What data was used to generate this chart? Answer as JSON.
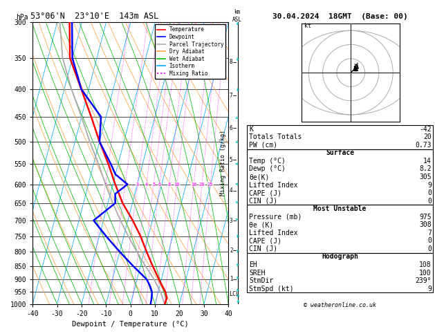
{
  "title_left": "53°06'N  23°10'E  143m ASL",
  "title_right": "30.04.2024  18GMT  (Base: 00)",
  "label_hpa": "hPa",
  "xlabel": "Dewpoint / Temperature (°C)",
  "ylabel_mixing": "Mixing Ratio (g/kg)",
  "pressure_ticks": [
    300,
    350,
    400,
    450,
    500,
    550,
    600,
    650,
    700,
    750,
    800,
    850,
    900,
    950,
    1000
  ],
  "xlim": [
    -40,
    40
  ],
  "background_color": "#ffffff",
  "temp_color": "#ff0000",
  "dewp_color": "#0000ff",
  "parcel_color": "#aaaaaa",
  "dry_adiabat_color": "#ffa040",
  "wet_adiabat_color": "#00bb00",
  "isotherm_color": "#00aaff",
  "mixing_ratio_color": "#ff00ff",
  "lcl_label": "LCL",
  "mixing_ratio_values": [
    1,
    2,
    3,
    4,
    5,
    6,
    8,
    10,
    16,
    20,
    25
  ],
  "km_ticks": [
    1,
    2,
    3,
    4,
    5,
    6,
    7,
    8
  ],
  "legend_entries": [
    "Temperature",
    "Dewpoint",
    "Parcel Trajectory",
    "Dry Adiabat",
    "Wet Adiabat",
    "Isotherm",
    "Mixing Ratio"
  ],
  "legend_colors": [
    "#ff0000",
    "#0000ff",
    "#aaaaaa",
    "#ffa040",
    "#00bb00",
    "#00aaff",
    "#ff00ff"
  ],
  "stats_lines": [
    [
      "K",
      "-42"
    ],
    [
      "Totals Totals",
      "20"
    ],
    [
      "PW (cm)",
      "0.73"
    ]
  ],
  "surface_lines": [
    [
      "Temp (°C)",
      "14"
    ],
    [
      "Dewp (°C)",
      "8.2"
    ],
    [
      "θe(K)",
      "305"
    ],
    [
      "Lifted Index",
      "9"
    ],
    [
      "CAPE (J)",
      "0"
    ],
    [
      "CIN (J)",
      "0"
    ]
  ],
  "unstable_lines": [
    [
      "Pressure (mb)",
      "975"
    ],
    [
      "θe (K)",
      "308"
    ],
    [
      "Lifted Index",
      "7"
    ],
    [
      "CAPE (J)",
      "0"
    ],
    [
      "CIN (J)",
      "0"
    ]
  ],
  "hodo_lines": [
    [
      "EH",
      "108"
    ],
    [
      "SREH",
      "100"
    ],
    [
      "StmDir",
      "239°"
    ],
    [
      "StmSpd (kt)",
      "9"
    ]
  ],
  "copyright": "© weatheronline.co.uk",
  "temp_profile_p": [
    1000,
    975,
    950,
    925,
    900,
    850,
    800,
    750,
    700,
    650,
    600,
    550,
    500,
    450,
    400,
    350,
    300
  ],
  "temp_profile_t": [
    14,
    14.2,
    13,
    11,
    9,
    5,
    1,
    -3,
    -8,
    -14,
    -19,
    -24,
    -30,
    -36,
    -43,
    -51,
    -55
  ],
  "dewp_profile_p": [
    1000,
    975,
    950,
    925,
    900,
    850,
    800,
    750,
    700,
    650,
    625,
    600,
    575,
    550,
    500,
    450,
    400,
    350,
    300
  ],
  "dewp_profile_t": [
    8.2,
    8.0,
    7.5,
    6,
    4,
    -3,
    -10,
    -17,
    -24,
    -17,
    -18,
    -14,
    -20,
    -23,
    -30,
    -32,
    -43,
    -50,
    -54
  ],
  "parcel_profile_p": [
    1000,
    975,
    950,
    925,
    900,
    850,
    800,
    750,
    700,
    650,
    600,
    550,
    500,
    450,
    400,
    350,
    300
  ],
  "parcel_profile_t": [
    14,
    12.5,
    11,
    9,
    7,
    2,
    -3,
    -8,
    -13,
    -18,
    -23,
    -28,
    -34,
    -40,
    -47,
    -54,
    -59
  ],
  "lcl_pressure": 960,
  "wind_data_p": [
    1000,
    975,
    950,
    900,
    850,
    800,
    750,
    700,
    650,
    600,
    550,
    500,
    450,
    400,
    350,
    300
  ],
  "wind_data_dir": [
    180,
    195,
    210,
    220,
    230,
    235,
    240,
    250,
    255,
    265,
    270,
    280,
    290,
    300,
    315,
    325
  ],
  "wind_data_spd": [
    3,
    5,
    8,
    10,
    12,
    10,
    8,
    8,
    6,
    5,
    5,
    6,
    8,
    9,
    10,
    9
  ],
  "skew_factor": 25.0,
  "pmin": 300,
  "pmax": 1000
}
